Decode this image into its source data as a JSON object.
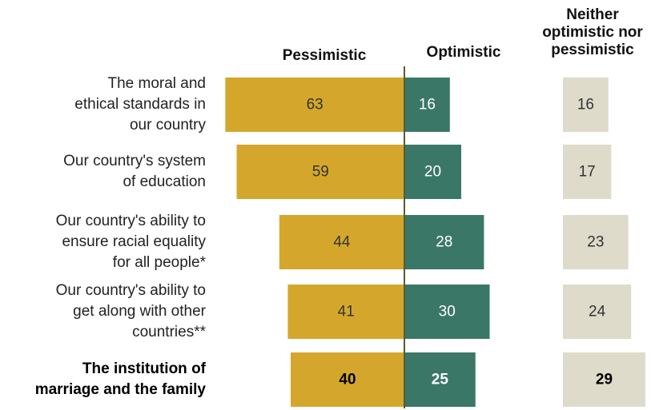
{
  "headers": {
    "pessimistic": "Pessimistic",
    "optimistic": "Optimistic",
    "neither_line1": "Neither",
    "neither_line2": "optimistic nor",
    "neither_line3": "pessimistic"
  },
  "colors": {
    "pessimistic": "#D4A72C",
    "optimistic": "#3A7766",
    "neither": "#DEDBCB",
    "center_line": "#5C5A33"
  },
  "chart_data": {
    "type": "bar",
    "orientation": "horizontal-diverging",
    "categories": [
      {
        "lines": [
          "The moral and",
          "ethical standards in",
          "our country"
        ],
        "bold": false
      },
      {
        "lines": [
          "Our country's system",
          "of education"
        ],
        "bold": false
      },
      {
        "lines": [
          "Our country's ability to",
          "ensure racial equality",
          "for all people*"
        ],
        "bold": false
      },
      {
        "lines": [
          "Our country's ability to",
          "get along with other",
          "countries**"
        ],
        "bold": false
      },
      {
        "lines": [
          "The institution of",
          "marriage and the family"
        ],
        "bold": true
      }
    ],
    "series": [
      {
        "name": "Pessimistic",
        "values": [
          63,
          59,
          44,
          41,
          40
        ]
      },
      {
        "name": "Optimistic",
        "values": [
          16,
          20,
          28,
          30,
          25
        ]
      },
      {
        "name": "Neither optimistic nor pessimistic",
        "values": [
          16,
          17,
          23,
          24,
          29
        ]
      }
    ]
  }
}
